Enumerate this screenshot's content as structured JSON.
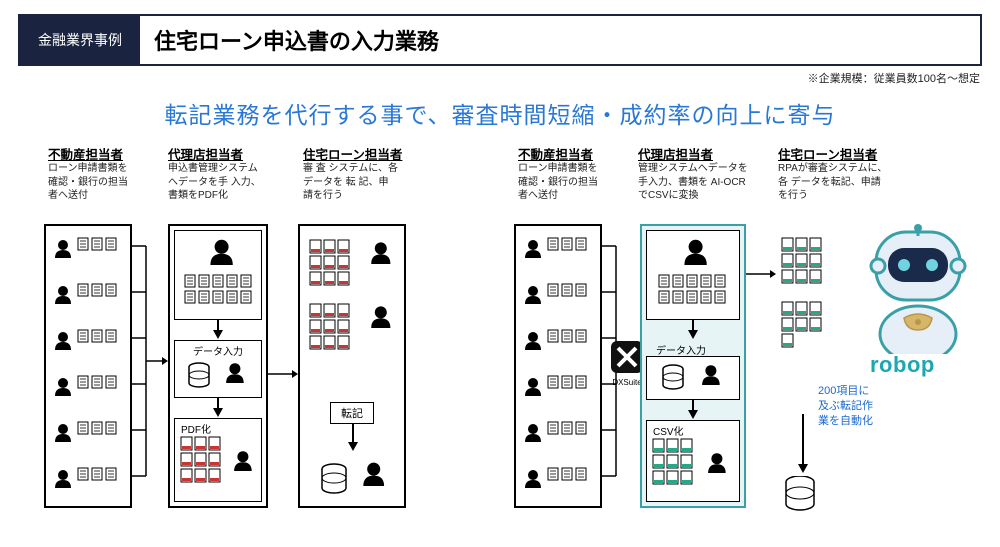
{
  "header": {
    "badge": "金融業界事例",
    "title": "住宅ローン申込書の入力業務"
  },
  "subnote": "※企業規模：従業員数100名～想定",
  "headline": "転記業務を代行する事で、審査時間短縮・成約率の向上に寄与",
  "left": {
    "col1": {
      "title": "不動産担当者",
      "desc": "ローン申請書類を確認・銀行の担当者へ送付"
    },
    "col2": {
      "title": "代理店担当者",
      "desc": "申込書管理システムへデータを手 入力、書類をPDF化"
    },
    "col3": {
      "title": "住宅ローン担当者",
      "desc": "審 査 システムに、各 データを 転 記、申請を行う"
    },
    "labels": {
      "data_input": "データ入力",
      "pdf": "PDF化",
      "tenki": "転記"
    }
  },
  "right": {
    "col1": {
      "title": "不動産担当者",
      "desc": "ローン申請書類を確認・銀行の担当者へ送付"
    },
    "col2": {
      "title": "代理店担当者",
      "desc": "管理システムへデータを手入力、書類を AI-OCRでCSVに変換"
    },
    "col3": {
      "title": "住宅ローン担当者",
      "desc": "RPAが審査システムに、各 データを転記、申請を行う"
    },
    "labels": {
      "dxsuite": "DXSuite",
      "data_input": "データ入力",
      "csv": "CSV化"
    }
  },
  "caption": "200項目に及ぶ転記作業を自動化",
  "brand": "robop",
  "colors": {
    "navy": "#1a2440",
    "blue_text": "#2a78d6",
    "teal": "#3aa0a8",
    "teal_bg": "#e6f4f5",
    "link_blue": "#1b68d0"
  }
}
